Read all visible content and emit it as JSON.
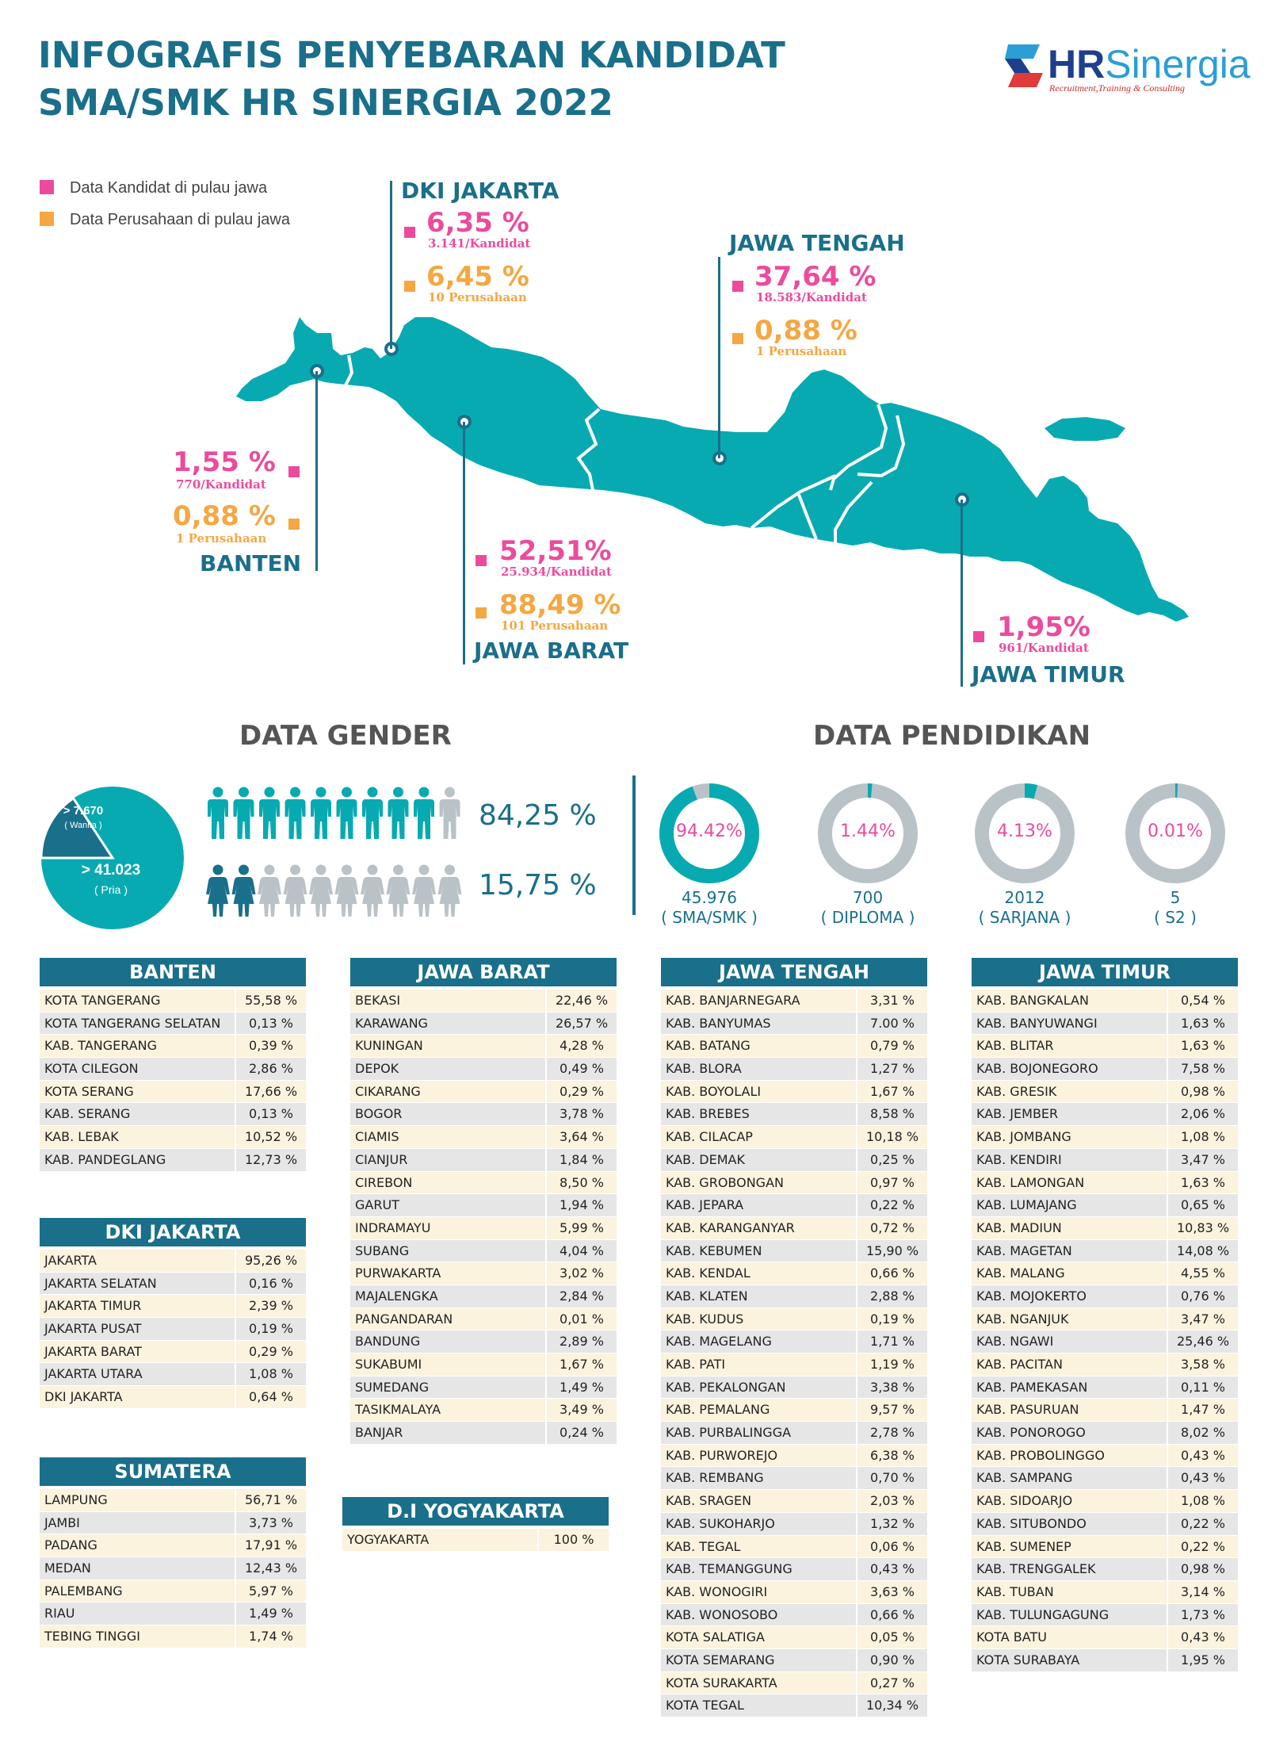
{
  "header": {
    "title_line1": "INFOGRAFIS PENYEBARAN KANDIDAT",
    "title_line2": "SMA/SMK HR SINERGIA 2022",
    "logo_hr": "HR",
    "logo_sinergia": "Sinergia",
    "logo_tagline": "Recruitment,Training & Consulting"
  },
  "legend": {
    "kandidat": "Data Kandidat di pulau jawa",
    "perusahaan": "Data Perusahaan di pulau jawa",
    "kandidat_color": "#ec4b9d",
    "perusahaan_color": "#f4a742"
  },
  "map": {
    "dki": {
      "name": "DKI JAKARTA",
      "kandidat_pct": "6,35 %",
      "kandidat_count": "3.141/Kandidat",
      "perusahaan_pct": "6,45 %",
      "perusahaan_count": "10 Perusahaan"
    },
    "jateng": {
      "name": "JAWA TENGAH",
      "kandidat_pct": "37,64 %",
      "kandidat_count": "18.583/Kandidat",
      "perusahaan_pct": "0,88 %",
      "perusahaan_count": "1 Perusahaan"
    },
    "banten": {
      "name": "BANTEN",
      "kandidat_pct": "1,55 %",
      "kandidat_count": "770/Kandidat",
      "perusahaan_pct": "0,88 %",
      "perusahaan_count": "1 Perusahaan"
    },
    "jabar": {
      "name": "JAWA BARAT",
      "kandidat_pct": "52,51%",
      "kandidat_count": "25.934/Kandidat",
      "perusahaan_pct": "88,49 %",
      "perusahaan_count": "101 Perusahaan"
    },
    "jatim": {
      "name": "JAWA TIMUR",
      "kandidat_pct": "1,95%",
      "kandidat_count": "961/Kandidat"
    }
  },
  "gender": {
    "title": "DATA GENDER",
    "wanita": "> 7.670",
    "wanita_label": "( Wanita )",
    "pria": "> 41.023",
    "pria_label": "( Pria )",
    "pria_pct": "84,25  %",
    "wanita_pct": "15,75  %",
    "pria_share": 0.8425
  },
  "pendidikan": {
    "title": "DATA PENDIDIKAN",
    "items": [
      {
        "pct": "94.42%",
        "count": "45.976",
        "label": "( SMA/SMK )",
        "share": 0.9442
      },
      {
        "pct": "1.44%",
        "count": "700",
        "label": "( DIPLOMA )",
        "share": 0.0144
      },
      {
        "pct": "4.13%",
        "count": "2012",
        "label": "( SARJANA )",
        "share": 0.0413
      },
      {
        "pct": "0.01%",
        "count": "5",
        "label": "( S2 )",
        "share": 0.0001
      }
    ]
  },
  "tables": {
    "banten": {
      "title": "BANTEN",
      "rows": [
        [
          "KOTA TANGERANG",
          "55,58 %"
        ],
        [
          "KOTA TANGERANG SELATAN",
          "0,13 %"
        ],
        [
          "KAB. TANGERANG",
          "0,39 %"
        ],
        [
          "KOTA CILEGON",
          "2,86 %"
        ],
        [
          "KOTA SERANG",
          "17,66 %"
        ],
        [
          "KAB. SERANG",
          "0,13 %"
        ],
        [
          "KAB. LEBAK",
          "10,52 %"
        ],
        [
          "KAB. PANDEGLANG",
          "12,73 %"
        ]
      ]
    },
    "dki": {
      "title": "DKI JAKARTA",
      "rows": [
        [
          "JAKARTA",
          "95,26 %"
        ],
        [
          "JAKARTA SELATAN",
          "0,16 %"
        ],
        [
          "JAKARTA TIMUR",
          "2,39 %"
        ],
        [
          "JAKARTA PUSAT",
          "0,19 %"
        ],
        [
          "JAKARTA BARAT",
          "0,29 %"
        ],
        [
          "JAKARTA UTARA",
          "1,08 %"
        ],
        [
          "DKI JAKARTA",
          "0,64 %"
        ]
      ]
    },
    "sumatera": {
      "title": "SUMATERA",
      "rows": [
        [
          "LAMPUNG",
          "56,71 %"
        ],
        [
          "JAMBI",
          "3,73 %"
        ],
        [
          "PADANG",
          "17,91 %"
        ],
        [
          "MEDAN",
          "12,43 %"
        ],
        [
          "PALEMBANG",
          "5,97 %"
        ],
        [
          "RIAU",
          "1,49 %"
        ],
        [
          "TEBING TINGGI",
          "1,74 %"
        ]
      ]
    },
    "jabar": {
      "title": "JAWA BARAT",
      "rows": [
        [
          "BEKASI",
          "22,46 %"
        ],
        [
          "KARAWANG",
          "26,57 %"
        ],
        [
          "KUNINGAN",
          "4,28 %"
        ],
        [
          "DEPOK",
          "0,49 %"
        ],
        [
          "CIKARANG",
          "0,29 %"
        ],
        [
          "BOGOR",
          "3,78 %"
        ],
        [
          "CIAMIS",
          "3,64 %"
        ],
        [
          "CIANJUR",
          "1,84 %"
        ],
        [
          "CIREBON",
          "8,50 %"
        ],
        [
          "GARUT",
          "1,94 %"
        ],
        [
          "INDRAMAYU",
          "5,99 %"
        ],
        [
          "SUBANG",
          "4,04 %"
        ],
        [
          "PURWAKARTA",
          "3,02 %"
        ],
        [
          "MAJALENGKA",
          "2,84 %"
        ],
        [
          "PANGANDARAN",
          "0,01 %"
        ],
        [
          "BANDUNG",
          "2,89 %"
        ],
        [
          "SUKABUMI",
          "1,67 %"
        ],
        [
          "SUMEDANG",
          "1,49 %"
        ],
        [
          "TASIKMALAYA",
          "3,49 %"
        ],
        [
          "BANJAR",
          "0,24 %"
        ]
      ]
    },
    "yogya": {
      "title": "D.I YOGYAKARTA",
      "rows": [
        [
          "YOGYAKARTA",
          "100 %"
        ]
      ]
    },
    "jateng": {
      "title": "JAWA TENGAH",
      "rows": [
        [
          "KAB. BANJARNEGARA",
          "3,31 %"
        ],
        [
          "KAB. BANYUMAS",
          "7.00 %"
        ],
        [
          "KAB. BATANG",
          "0,79 %"
        ],
        [
          "KAB. BLORA",
          "1,27 %"
        ],
        [
          "KAB. BOYOLALI",
          "1,67 %"
        ],
        [
          "KAB. BREBES",
          "8,58 %"
        ],
        [
          "KAB. CILACAP",
          "10,18 %"
        ],
        [
          "KAB. DEMAK",
          "0,25 %"
        ],
        [
          "KAB. GROBONGAN",
          "0,97 %"
        ],
        [
          "KAB. JEPARA",
          "0,22 %"
        ],
        [
          "KAB. KARANGANYAR",
          "0,72 %"
        ],
        [
          "KAB. KEBUMEN",
          "15,90 %"
        ],
        [
          "KAB. KENDAL",
          "0,66 %"
        ],
        [
          "KAB. KLATEN",
          "2,88 %"
        ],
        [
          "KAB. KUDUS",
          "0,19 %"
        ],
        [
          "KAB. MAGELANG",
          "1,71 %"
        ],
        [
          "KAB. PATI",
          "1,19 %"
        ],
        [
          "KAB. PEKALONGAN",
          "3,38 %"
        ],
        [
          "KAB. PEMALANG",
          "9,57 %"
        ],
        [
          "KAB. PURBALINGGA",
          "2,78 %"
        ],
        [
          "KAB. PURWOREJO",
          "6,38 %"
        ],
        [
          "KAB. REMBANG",
          "0,70 %"
        ],
        [
          "KAB. SRAGEN",
          "2,03 %"
        ],
        [
          "KAB. SUKOHARJO",
          "1,32 %"
        ],
        [
          "KAB. TEGAL",
          "0,06 %"
        ],
        [
          "KAB. TEMANGGUNG",
          "0,43 %"
        ],
        [
          "KAB. WONOGIRI",
          "3,63 %"
        ],
        [
          "KAB. WONOSOBO",
          "0,66 %"
        ],
        [
          "KOTA SALATIGA",
          "0,05 %"
        ],
        [
          "KOTA SEMARANG",
          "0,90 %"
        ],
        [
          "KOTA SURAKARTA",
          "0,27 %"
        ],
        [
          "KOTA TEGAL",
          "10,34 %"
        ]
      ]
    },
    "jatim": {
      "title": "JAWA TIMUR",
      "rows": [
        [
          "KAB. BANGKALAN",
          "0,54 %"
        ],
        [
          "KAB. BANYUWANGI",
          "1,63 %"
        ],
        [
          "KAB. BLITAR",
          "1,63 %"
        ],
        [
          "KAB. BOJONEGORO",
          "7,58 %"
        ],
        [
          "KAB. GRESIK",
          "0,98 %"
        ],
        [
          "KAB. JEMBER",
          "2,06 %"
        ],
        [
          "KAB. JOMBANG",
          "1,08 %"
        ],
        [
          "KAB. KENDIRI",
          "3,47 %"
        ],
        [
          "KAB. LAMONGAN",
          "1,63 %"
        ],
        [
          "KAB. LUMAJANG",
          "0,65 %"
        ],
        [
          "KAB. MADIUN",
          "10,83 %"
        ],
        [
          "KAB. MAGETAN",
          "14,08 %"
        ],
        [
          "KAB. MALANG",
          "4,55 %"
        ],
        [
          "KAB. MOJOKERTO",
          "0,76 %"
        ],
        [
          "KAB. NGANJUK",
          "3,47 %"
        ],
        [
          "KAB. NGAWI",
          "25,46 %"
        ],
        [
          "KAB. PACITAN",
          "3,58 %"
        ],
        [
          "KAB. PAMEKASAN",
          "0,11 %"
        ],
        [
          "KAB. PASURUAN",
          "1,47 %"
        ],
        [
          "KAB. PONOROGO",
          "8,02 %"
        ],
        [
          "KAB. PROBOLINGGO",
          "0,43 %"
        ],
        [
          "KAB. SAMPANG",
          "0,43 %"
        ],
        [
          "KAB. SIDOARJO",
          "1,08 %"
        ],
        [
          "KAB. SITUBONDO",
          "0,22 %"
        ],
        [
          "KAB. SUMENEP",
          "0,22 %"
        ],
        [
          "KAB. TRENGGALEK",
          "0,98 %"
        ],
        [
          "KAB. TUBAN",
          "3,14 %"
        ],
        [
          "KAB. TULUNGAGUNG",
          "1,73 %"
        ],
        [
          "KOTA BATU",
          "0,43 %"
        ],
        [
          "KOTA SURABAYA",
          "1,95 %"
        ]
      ]
    }
  }
}
